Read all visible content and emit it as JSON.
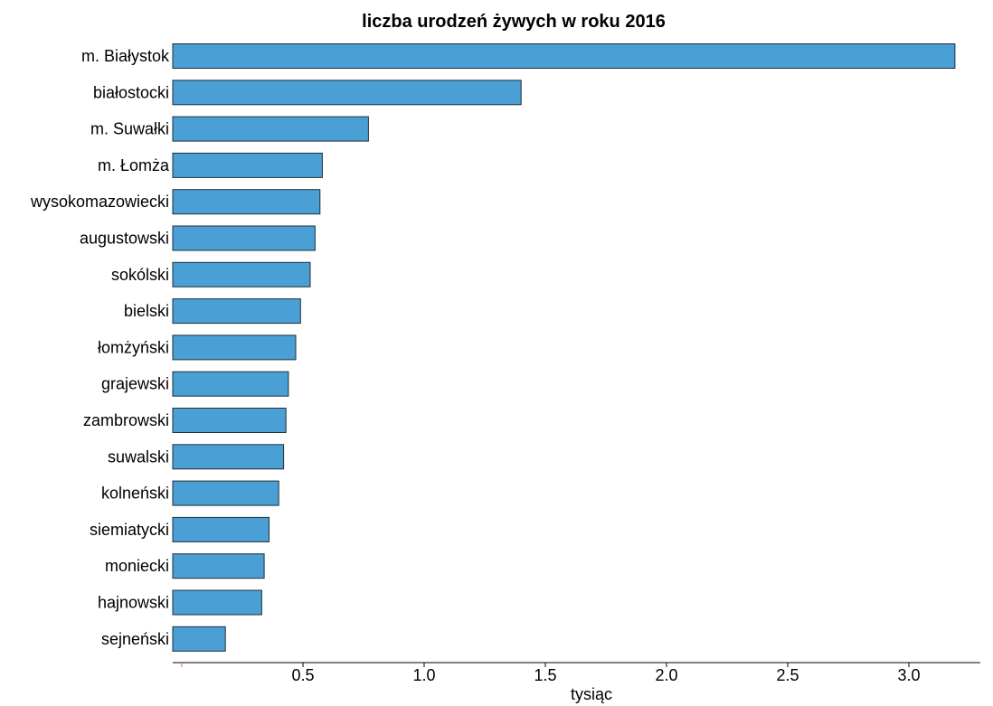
{
  "chart_data": {
    "type": "bar",
    "orientation": "horizontal",
    "title": "liczba urodzeń żywych w roku 2016",
    "xlabel": "tysiąc",
    "ylabel": "",
    "categories": [
      "m. Białystok",
      "białostocki",
      "m. Suwałki",
      "m. Łomża",
      "wysokomazowiecki",
      "augustowski",
      "sokólski",
      "bielski",
      "łomżyński",
      "grajewski",
      "zambrowski",
      "suwalski",
      "kolneński",
      "siemiatycki",
      "moniecki",
      "hajnowski",
      "sejneński"
    ],
    "values": [
      3.19,
      1.4,
      0.77,
      0.58,
      0.57,
      0.55,
      0.53,
      0.49,
      0.47,
      0.44,
      0.43,
      0.42,
      0.4,
      0.36,
      0.34,
      0.33,
      0.18
    ],
    "xlim": [
      0,
      3.3
    ],
    "xticks": [
      0.5,
      1.0,
      1.5,
      2.0,
      2.5,
      3.0
    ],
    "xtick_labels": [
      "0.5",
      "1.0",
      "1.5",
      "2.0",
      "2.5",
      "3.0"
    ],
    "grid": false,
    "colors": {
      "bar_fill": "#4a9fd4",
      "bar_stroke": "#1f2f3a",
      "axis": "#000000",
      "origin_tick": "#e06a5a"
    }
  }
}
